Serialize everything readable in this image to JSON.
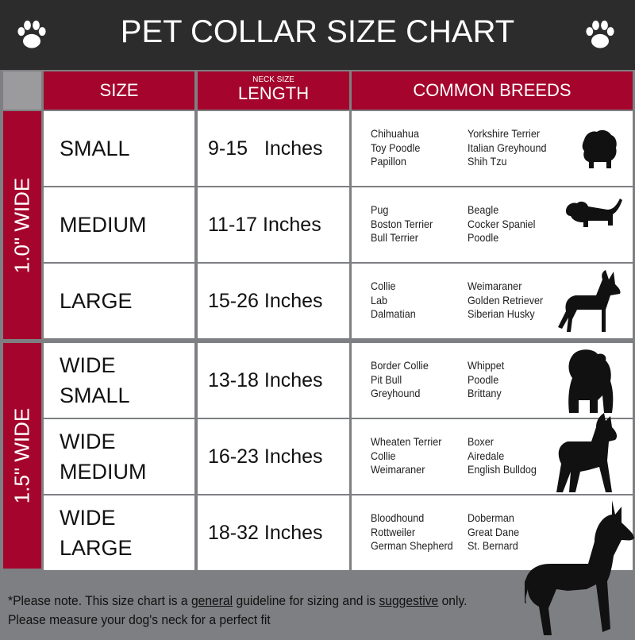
{
  "header": {
    "title": "PET COLLAR SIZE CHART",
    "left_icon": "paw-print-icon",
    "right_icon": "paw-print-icon"
  },
  "columns": {
    "size": "SIZE",
    "length_small": "NECK SIZE",
    "length": "LENGTH",
    "breeds": "COMMON BREEDS"
  },
  "groups": [
    {
      "label": "1.0\" WIDE"
    },
    {
      "label": "1.5\" WIDE"
    }
  ],
  "rows": [
    {
      "size": [
        "SMALL"
      ],
      "length": "9-15   Inches",
      "breeds_a": [
        "Chihuahua",
        "Toy Poodle",
        "Papillon"
      ],
      "breeds_b": [
        "Yorkshire Terrier",
        "Italian Greyhound",
        "Shih Tzu"
      ],
      "icon": "small-dog-icon"
    },
    {
      "size": [
        "MEDIUM"
      ],
      "length": "11-17 Inches",
      "breeds_a": [
        "Pug",
        "Boston Terrier",
        "Bull Terrier"
      ],
      "breeds_b": [
        "Beagle",
        "Cocker Spaniel",
        "Poodle"
      ],
      "icon": "dachshund-icon"
    },
    {
      "size": [
        "LARGE"
      ],
      "length": "15-26 Inches",
      "breeds_a": [
        "Collie",
        "Lab",
        "Dalmatian"
      ],
      "breeds_b": [
        "Weimaraner",
        "Golden Retriever",
        "Siberian Husky"
      ],
      "icon": "large-dog-icon"
    },
    {
      "size": [
        "WIDE",
        "SMALL"
      ],
      "length": "13-18 Inches",
      "breeds_a": [
        "Border Collie",
        "Pit Bull",
        "Greyhound"
      ],
      "breeds_b": [
        "Whippet",
        "Poodle",
        "Brittany"
      ],
      "icon": "bulldog-icon"
    },
    {
      "size": [
        "WIDE",
        "MEDIUM"
      ],
      "length": "16-23 Inches",
      "breeds_a": [
        "Wheaten Terrier",
        "Collie",
        "Weimaraner"
      ],
      "breeds_b": [
        "Boxer",
        "Airedale",
        "English Bulldog"
      ],
      "icon": "pitbull-icon"
    },
    {
      "size": [
        "WIDE",
        "LARGE"
      ],
      "length": "18-32 Inches",
      "breeds_a": [
        "Bloodhound",
        "Rottweiler",
        "German Shepherd"
      ],
      "breeds_b": [
        "Doberman",
        "Great Dane",
        "St. Bernard"
      ],
      "icon": "doberman-icon"
    }
  ],
  "footer": {
    "line1_a": "*Please note. This size chart is a ",
    "line1_u1": "general",
    "line1_b": " guideline for sizing and is ",
    "line1_u2": "suggestive",
    "line1_c": " only.",
    "line2": "Please measure your dog's neck for a perfect fit"
  },
  "colors": {
    "header": "#2c2c2c",
    "accent": "#a5052c",
    "background": "#7e7f82"
  }
}
